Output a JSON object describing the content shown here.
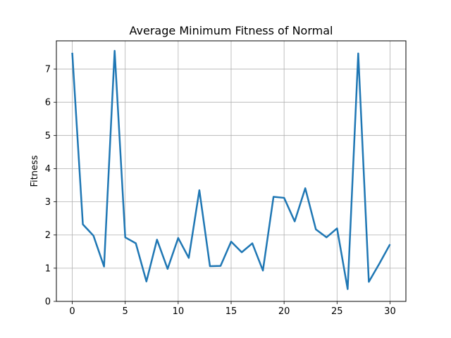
{
  "chart_data": {
    "type": "line",
    "title": "Average Minimum Fitness of Normal",
    "xlabel": "",
    "ylabel": "Fitness",
    "xlim": [
      -1.5,
      31.5
    ],
    "ylim": [
      0,
      7.85
    ],
    "xticks": [
      0,
      5,
      10,
      15,
      20,
      25,
      30
    ],
    "yticks": [
      0,
      1,
      2,
      3,
      4,
      5,
      6,
      7
    ],
    "grid": true,
    "series": [
      {
        "color": "#1f77b4",
        "x": [
          0,
          1,
          2,
          3,
          4,
          5,
          6,
          7,
          8,
          9,
          10,
          11,
          12,
          13,
          14,
          15,
          16,
          17,
          18,
          19,
          20,
          21,
          22,
          23,
          24,
          25,
          26,
          27,
          28,
          29,
          30
        ],
        "values": [
          7.49,
          2.32,
          1.98,
          1.05,
          7.55,
          1.93,
          1.75,
          0.6,
          1.86,
          0.98,
          1.91,
          1.31,
          3.35,
          1.06,
          1.07,
          1.8,
          1.48,
          1.75,
          0.93,
          3.15,
          3.12,
          2.41,
          3.41,
          2.17,
          1.93,
          2.2,
          0.37,
          7.47,
          0.59,
          1.14,
          1.72
        ]
      }
    ]
  }
}
